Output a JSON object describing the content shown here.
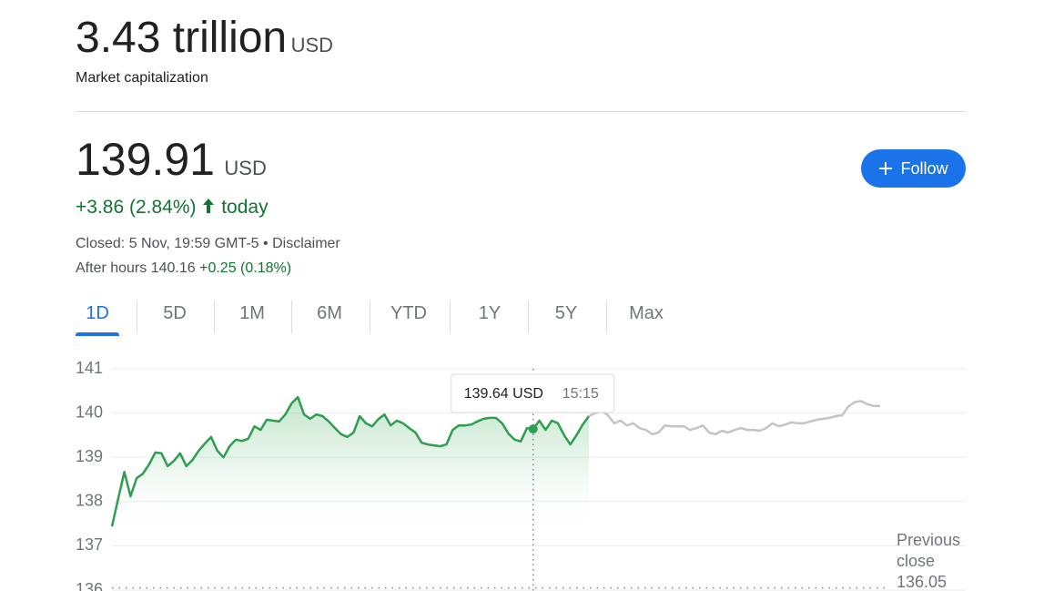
{
  "header": {
    "market_cap": "3.43 trillion",
    "market_cap_currency": "USD",
    "market_cap_label": "Market capitalization"
  },
  "quote": {
    "price": "139.91",
    "currency": "USD",
    "change": "+3.86 (2.84%)",
    "change_suffix": "today",
    "closed": "Closed: 5 Nov, 19:59 GMT-5",
    "disclaimer": "Disclaimer",
    "after_hours_label": "After hours",
    "after_hours_price": "140.16",
    "after_hours_change": "+0.25 (0.18%)"
  },
  "follow_button": "Follow",
  "tabs": [
    "1D",
    "5D",
    "1M",
    "6M",
    "YTD",
    "1Y",
    "5Y",
    "Max"
  ],
  "active_tab": 0,
  "chart_data": {
    "type": "line",
    "ylim": [
      136,
      141
    ],
    "yticks": [
      136,
      137,
      138,
      139,
      140,
      141
    ],
    "grid": true,
    "series": [
      {
        "color": "#2e9e4f",
        "values": [
          137.44,
          138.06,
          138.67,
          138.12,
          138.53,
          138.63,
          138.84,
          139.11,
          139.09,
          138.8,
          138.92,
          139.09,
          138.8,
          138.94,
          139.15,
          139.31,
          139.46,
          139.15,
          139.0,
          139.25,
          139.4,
          139.37,
          139.42,
          139.7,
          139.62,
          139.85,
          139.83,
          139.81,
          139.97,
          140.22,
          140.36,
          139.97,
          139.87,
          139.97,
          139.93,
          139.81,
          139.66,
          139.52,
          139.46,
          139.56,
          139.93,
          139.77,
          139.7,
          139.86,
          139.97,
          139.72,
          139.83,
          139.77,
          139.66,
          139.56,
          139.33,
          139.29,
          139.27,
          139.25,
          139.29,
          139.62,
          139.72,
          139.72,
          139.74,
          139.81,
          139.87,
          139.89,
          139.89,
          139.77,
          139.54,
          139.4,
          139.36,
          139.66,
          139.64,
          139.83,
          139.62,
          139.83,
          139.77,
          139.5,
          139.29,
          139.5,
          139.74,
          139.93
        ]
      },
      {
        "color": "#c4c4c4",
        "values": [
          139.93,
          140.0,
          140.05,
          139.95,
          139.77,
          139.83,
          139.72,
          139.77,
          139.66,
          139.62,
          139.52,
          139.56,
          139.72,
          139.7,
          139.7,
          139.7,
          139.62,
          139.66,
          139.72,
          139.56,
          139.52,
          139.6,
          139.56,
          139.62,
          139.66,
          139.62,
          139.62,
          139.6,
          139.66,
          139.77,
          139.7,
          139.74,
          139.79,
          139.77,
          139.77,
          139.81,
          139.85,
          139.87,
          139.89,
          139.93,
          139.95,
          140.15,
          140.25,
          140.27,
          140.2,
          140.16,
          140.16
        ]
      }
    ],
    "previous_close_label": "Previous close",
    "previous_close": 136.05,
    "tooltip": {
      "label": "139.64 USD",
      "time": "15:15"
    }
  }
}
